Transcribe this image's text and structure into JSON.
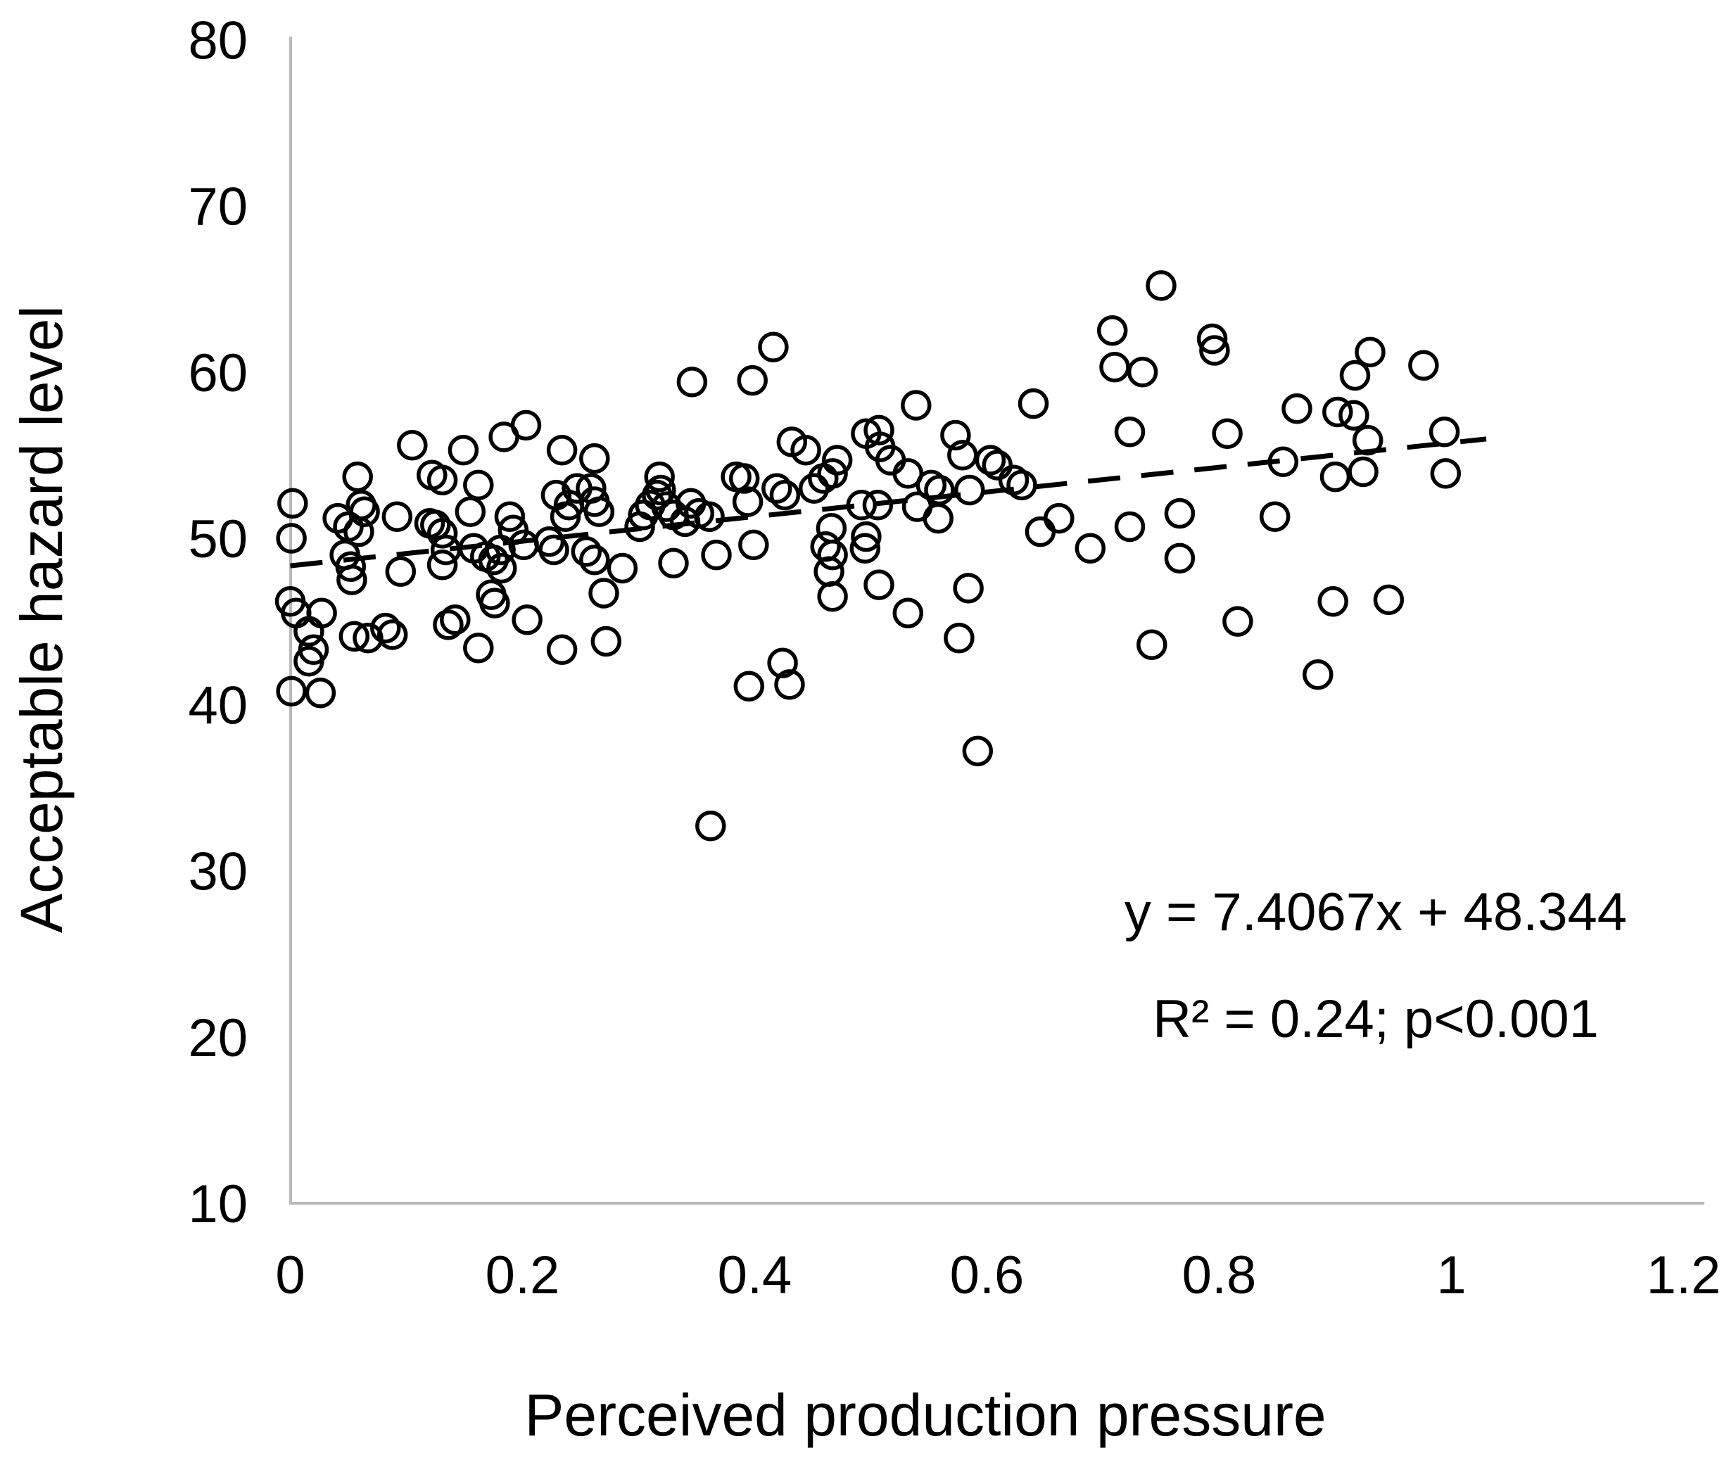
{
  "chart_data": {
    "type": "scatter",
    "title": "",
    "xlabel": "Perceived production pressure",
    "ylabel": "Acceptable hazard level",
    "xlim": [
      0,
      1.2
    ],
    "ylim": [
      10,
      80
    ],
    "x_ticks": [
      "0",
      "0.2",
      "0.4",
      "0.6",
      "0.8",
      "1",
      "1.2"
    ],
    "x_tick_values": [
      0,
      0.2,
      0.4,
      0.6,
      0.8,
      1.0,
      1.2
    ],
    "y_ticks": [
      "10",
      "20",
      "30",
      "40",
      "50",
      "60",
      "70",
      "80"
    ],
    "y_tick_values": [
      10,
      20,
      30,
      40,
      50,
      60,
      70,
      80
    ],
    "grid": "off",
    "legend": "none",
    "marker_style": "open-circle",
    "marker_color": "#000000",
    "axis_line_color": "#b9b9b9",
    "trendline": {
      "style": "dashed",
      "color": "#000000",
      "slope": 7.4067,
      "intercept": 48.344,
      "x_domain": [
        0.0,
        1.03
      ]
    },
    "annotation": {
      "line1": "y = 7.4067x + 48.344",
      "line2": "R² = 0.24; p<0.001"
    },
    "points": [
      [
        0.002,
        52.1
      ],
      [
        0.001,
        50.0
      ],
      [
        0.0,
        46.2
      ],
      [
        0.005,
        45.5
      ],
      [
        0.001,
        40.8
      ],
      [
        0.027,
        45.5
      ],
      [
        0.016,
        44.4
      ],
      [
        0.02,
        43.3
      ],
      [
        0.016,
        42.6
      ],
      [
        0.026,
        40.7
      ],
      [
        0.041,
        51.2
      ],
      [
        0.058,
        53.7
      ],
      [
        0.061,
        52.0
      ],
      [
        0.064,
        51.6
      ],
      [
        0.05,
        50.7
      ],
      [
        0.059,
        50.4
      ],
      [
        0.052,
        48.3
      ],
      [
        0.053,
        47.5
      ],
      [
        0.047,
        49.0
      ],
      [
        0.055,
        44.1
      ],
      [
        0.067,
        44.0
      ],
      [
        0.092,
        51.3
      ],
      [
        0.105,
        55.6
      ],
      [
        0.095,
        48.0
      ],
      [
        0.082,
        44.6
      ],
      [
        0.088,
        44.2
      ],
      [
        0.122,
        53.8
      ],
      [
        0.12,
        50.9
      ],
      [
        0.125,
        50.8
      ],
      [
        0.131,
        50.3
      ],
      [
        0.131,
        53.5
      ],
      [
        0.149,
        55.3
      ],
      [
        0.155,
        51.6
      ],
      [
        0.162,
        53.2
      ],
      [
        0.134,
        49.3
      ],
      [
        0.131,
        48.4
      ],
      [
        0.158,
        49.4
      ],
      [
        0.136,
        44.8
      ],
      [
        0.142,
        45.1
      ],
      [
        0.162,
        43.4
      ],
      [
        0.184,
        56.1
      ],
      [
        0.203,
        56.8
      ],
      [
        0.189,
        51.3
      ],
      [
        0.192,
        50.5
      ],
      [
        0.168,
        48.9
      ],
      [
        0.175,
        48.7
      ],
      [
        0.181,
        49.3
      ],
      [
        0.182,
        48.2
      ],
      [
        0.201,
        49.6
      ],
      [
        0.173,
        46.6
      ],
      [
        0.176,
        46.1
      ],
      [
        0.204,
        45.1
      ],
      [
        0.234,
        55.3
      ],
      [
        0.262,
        54.8
      ],
      [
        0.229,
        52.6
      ],
      [
        0.24,
        52.0
      ],
      [
        0.247,
        53.0
      ],
      [
        0.259,
        53.0
      ],
      [
        0.262,
        52.2
      ],
      [
        0.266,
        51.6
      ],
      [
        0.237,
        51.3
      ],
      [
        0.223,
        49.8
      ],
      [
        0.227,
        49.3
      ],
      [
        0.255,
        49.2
      ],
      [
        0.262,
        48.7
      ],
      [
        0.27,
        46.7
      ],
      [
        0.234,
        43.3
      ],
      [
        0.272,
        43.8
      ],
      [
        0.286,
        48.2
      ],
      [
        0.304,
        51.4
      ],
      [
        0.31,
        52.0
      ],
      [
        0.316,
        52.6
      ],
      [
        0.324,
        51.9
      ],
      [
        0.33,
        51.4
      ],
      [
        0.301,
        50.7
      ],
      [
        0.318,
        53.7
      ],
      [
        0.319,
        52.9
      ],
      [
        0.346,
        59.4
      ],
      [
        0.345,
        52.1
      ],
      [
        0.352,
        51.5
      ],
      [
        0.361,
        51.3
      ],
      [
        0.34,
        51.0
      ],
      [
        0.384,
        53.7
      ],
      [
        0.391,
        53.6
      ],
      [
        0.394,
        52.2
      ],
      [
        0.33,
        48.5
      ],
      [
        0.367,
        49.0
      ],
      [
        0.399,
        49.6
      ],
      [
        0.395,
        41.1
      ],
      [
        0.362,
        32.7
      ],
      [
        0.416,
        61.5
      ],
      [
        0.398,
        59.5
      ],
      [
        0.432,
        55.8
      ],
      [
        0.444,
        55.3
      ],
      [
        0.419,
        53.0
      ],
      [
        0.426,
        52.6
      ],
      [
        0.451,
        53.0
      ],
      [
        0.459,
        53.6
      ],
      [
        0.467,
        53.9
      ],
      [
        0.471,
        54.7
      ],
      [
        0.461,
        49.5
      ],
      [
        0.467,
        49.0
      ],
      [
        0.464,
        48.0
      ],
      [
        0.467,
        46.5
      ],
      [
        0.466,
        50.6
      ],
      [
        0.424,
        42.5
      ],
      [
        0.43,
        41.2
      ],
      [
        0.496,
        56.3
      ],
      [
        0.507,
        56.5
      ],
      [
        0.508,
        55.5
      ],
      [
        0.517,
        54.7
      ],
      [
        0.532,
        53.9
      ],
      [
        0.539,
        58.0
      ],
      [
        0.492,
        52.0
      ],
      [
        0.506,
        52.0
      ],
      [
        0.54,
        51.9
      ],
      [
        0.552,
        53.2
      ],
      [
        0.559,
        52.9
      ],
      [
        0.495,
        49.4
      ],
      [
        0.496,
        50.1
      ],
      [
        0.507,
        47.2
      ],
      [
        0.532,
        45.5
      ],
      [
        0.573,
        56.2
      ],
      [
        0.579,
        55.0
      ],
      [
        0.603,
        54.7
      ],
      [
        0.609,
        54.4
      ],
      [
        0.623,
        53.5
      ],
      [
        0.63,
        53.2
      ],
      [
        0.558,
        51.2
      ],
      [
        0.585,
        52.9
      ],
      [
        0.64,
        58.1
      ],
      [
        0.584,
        47.0
      ],
      [
        0.576,
        44.0
      ],
      [
        0.592,
        37.2
      ],
      [
        0.646,
        50.4
      ],
      [
        0.662,
        51.2
      ],
      [
        0.689,
        49.4
      ],
      [
        0.708,
        62.5
      ],
      [
        0.71,
        60.3
      ],
      [
        0.734,
        60.0
      ],
      [
        0.75,
        65.2
      ],
      [
        0.723,
        56.4
      ],
      [
        0.723,
        50.7
      ],
      [
        0.766,
        51.5
      ],
      [
        0.766,
        48.8
      ],
      [
        0.742,
        43.6
      ],
      [
        0.794,
        62.0
      ],
      [
        0.796,
        61.3
      ],
      [
        0.807,
        56.3
      ],
      [
        0.816,
        45.0
      ],
      [
        0.848,
        51.3
      ],
      [
        0.855,
        54.6
      ],
      [
        0.867,
        57.8
      ],
      [
        0.902,
        57.6
      ],
      [
        0.916,
        57.4
      ],
      [
        0.928,
        55.9
      ],
      [
        0.9,
        53.7
      ],
      [
        0.924,
        54.0
      ],
      [
        0.93,
        61.2
      ],
      [
        0.917,
        59.8
      ],
      [
        0.976,
        60.4
      ],
      [
        0.898,
        46.2
      ],
      [
        0.885,
        41.8
      ],
      [
        0.946,
        46.3
      ],
      [
        0.994,
        56.4
      ],
      [
        0.995,
        53.9
      ]
    ]
  }
}
